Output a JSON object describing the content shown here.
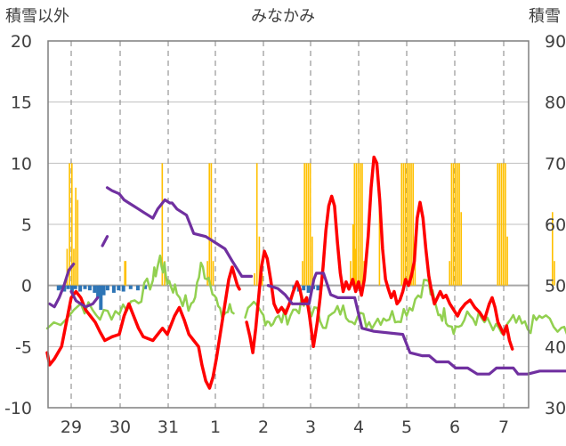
{
  "chart_data": {
    "type": "line",
    "title": "みなかみ",
    "left_axis": {
      "label": "積雪以外",
      "ylim": [
        -10,
        20
      ],
      "ticks": [
        "20",
        "15",
        "10",
        "5",
        "0",
        "-5",
        "-10"
      ]
    },
    "right_axis": {
      "label": "積雪",
      "ylim": [
        30,
        90
      ],
      "ticks": [
        "90",
        "80",
        "70",
        "60",
        "50",
        "40",
        "30"
      ]
    },
    "x_axis": {
      "day_labels": [
        "29",
        "30",
        "31",
        "1",
        "2",
        "3",
        "4",
        "5",
        "6",
        "7"
      ]
    },
    "grid": true,
    "colors": {
      "precip": "#FFC000",
      "temperature": "#FF0000",
      "snow_depth": "#7030A0",
      "dewpoint": "#92D050",
      "blue_bars": "#2E75B6"
    },
    "series": [
      {
        "key": "temperature",
        "points": [
          [
            0.0,
            -5.5
          ],
          [
            0.05,
            -6.5
          ],
          [
            0.15,
            -6.0
          ],
          [
            0.3,
            -5.0
          ],
          [
            0.4,
            -3.0
          ],
          [
            0.5,
            -1.0
          ],
          [
            0.6,
            -0.5
          ],
          [
            0.7,
            -1.0
          ],
          [
            0.8,
            -2.0
          ],
          [
            0.9,
            -2.5
          ],
          [
            1.0,
            -3.0
          ],
          [
            1.1,
            -3.8
          ],
          [
            1.2,
            -4.5
          ],
          [
            1.35,
            -4.2
          ],
          [
            1.5,
            -4.0
          ],
          [
            1.6,
            -2.5
          ],
          [
            1.7,
            -1.5
          ],
          [
            1.8,
            -2.5
          ],
          [
            1.9,
            -3.5
          ],
          [
            2.0,
            -4.2
          ],
          [
            2.2,
            -4.5
          ],
          [
            2.4,
            -3.5
          ],
          [
            2.5,
            -4.0
          ],
          [
            2.65,
            -2.5
          ],
          [
            2.75,
            -1.8
          ],
          [
            2.85,
            -2.8
          ],
          [
            2.95,
            -4.0
          ],
          [
            3.05,
            -4.5
          ],
          [
            3.15,
            -5.0
          ],
          [
            3.22,
            -6.5
          ],
          [
            3.3,
            -7.8
          ],
          [
            3.38,
            -8.4
          ],
          [
            3.45,
            -7.5
          ],
          [
            3.52,
            -6.0
          ],
          [
            3.6,
            -4.0
          ],
          [
            3.7,
            -1.5
          ],
          [
            3.78,
            0.5
          ],
          [
            3.85,
            1.5
          ],
          [
            3.9,
            0.8
          ],
          [
            3.96,
            0.0
          ],
          [
            4.0,
            -0.3
          ]
        ],
        "segments_break_after": 3.96
      }
    ]
  }
}
